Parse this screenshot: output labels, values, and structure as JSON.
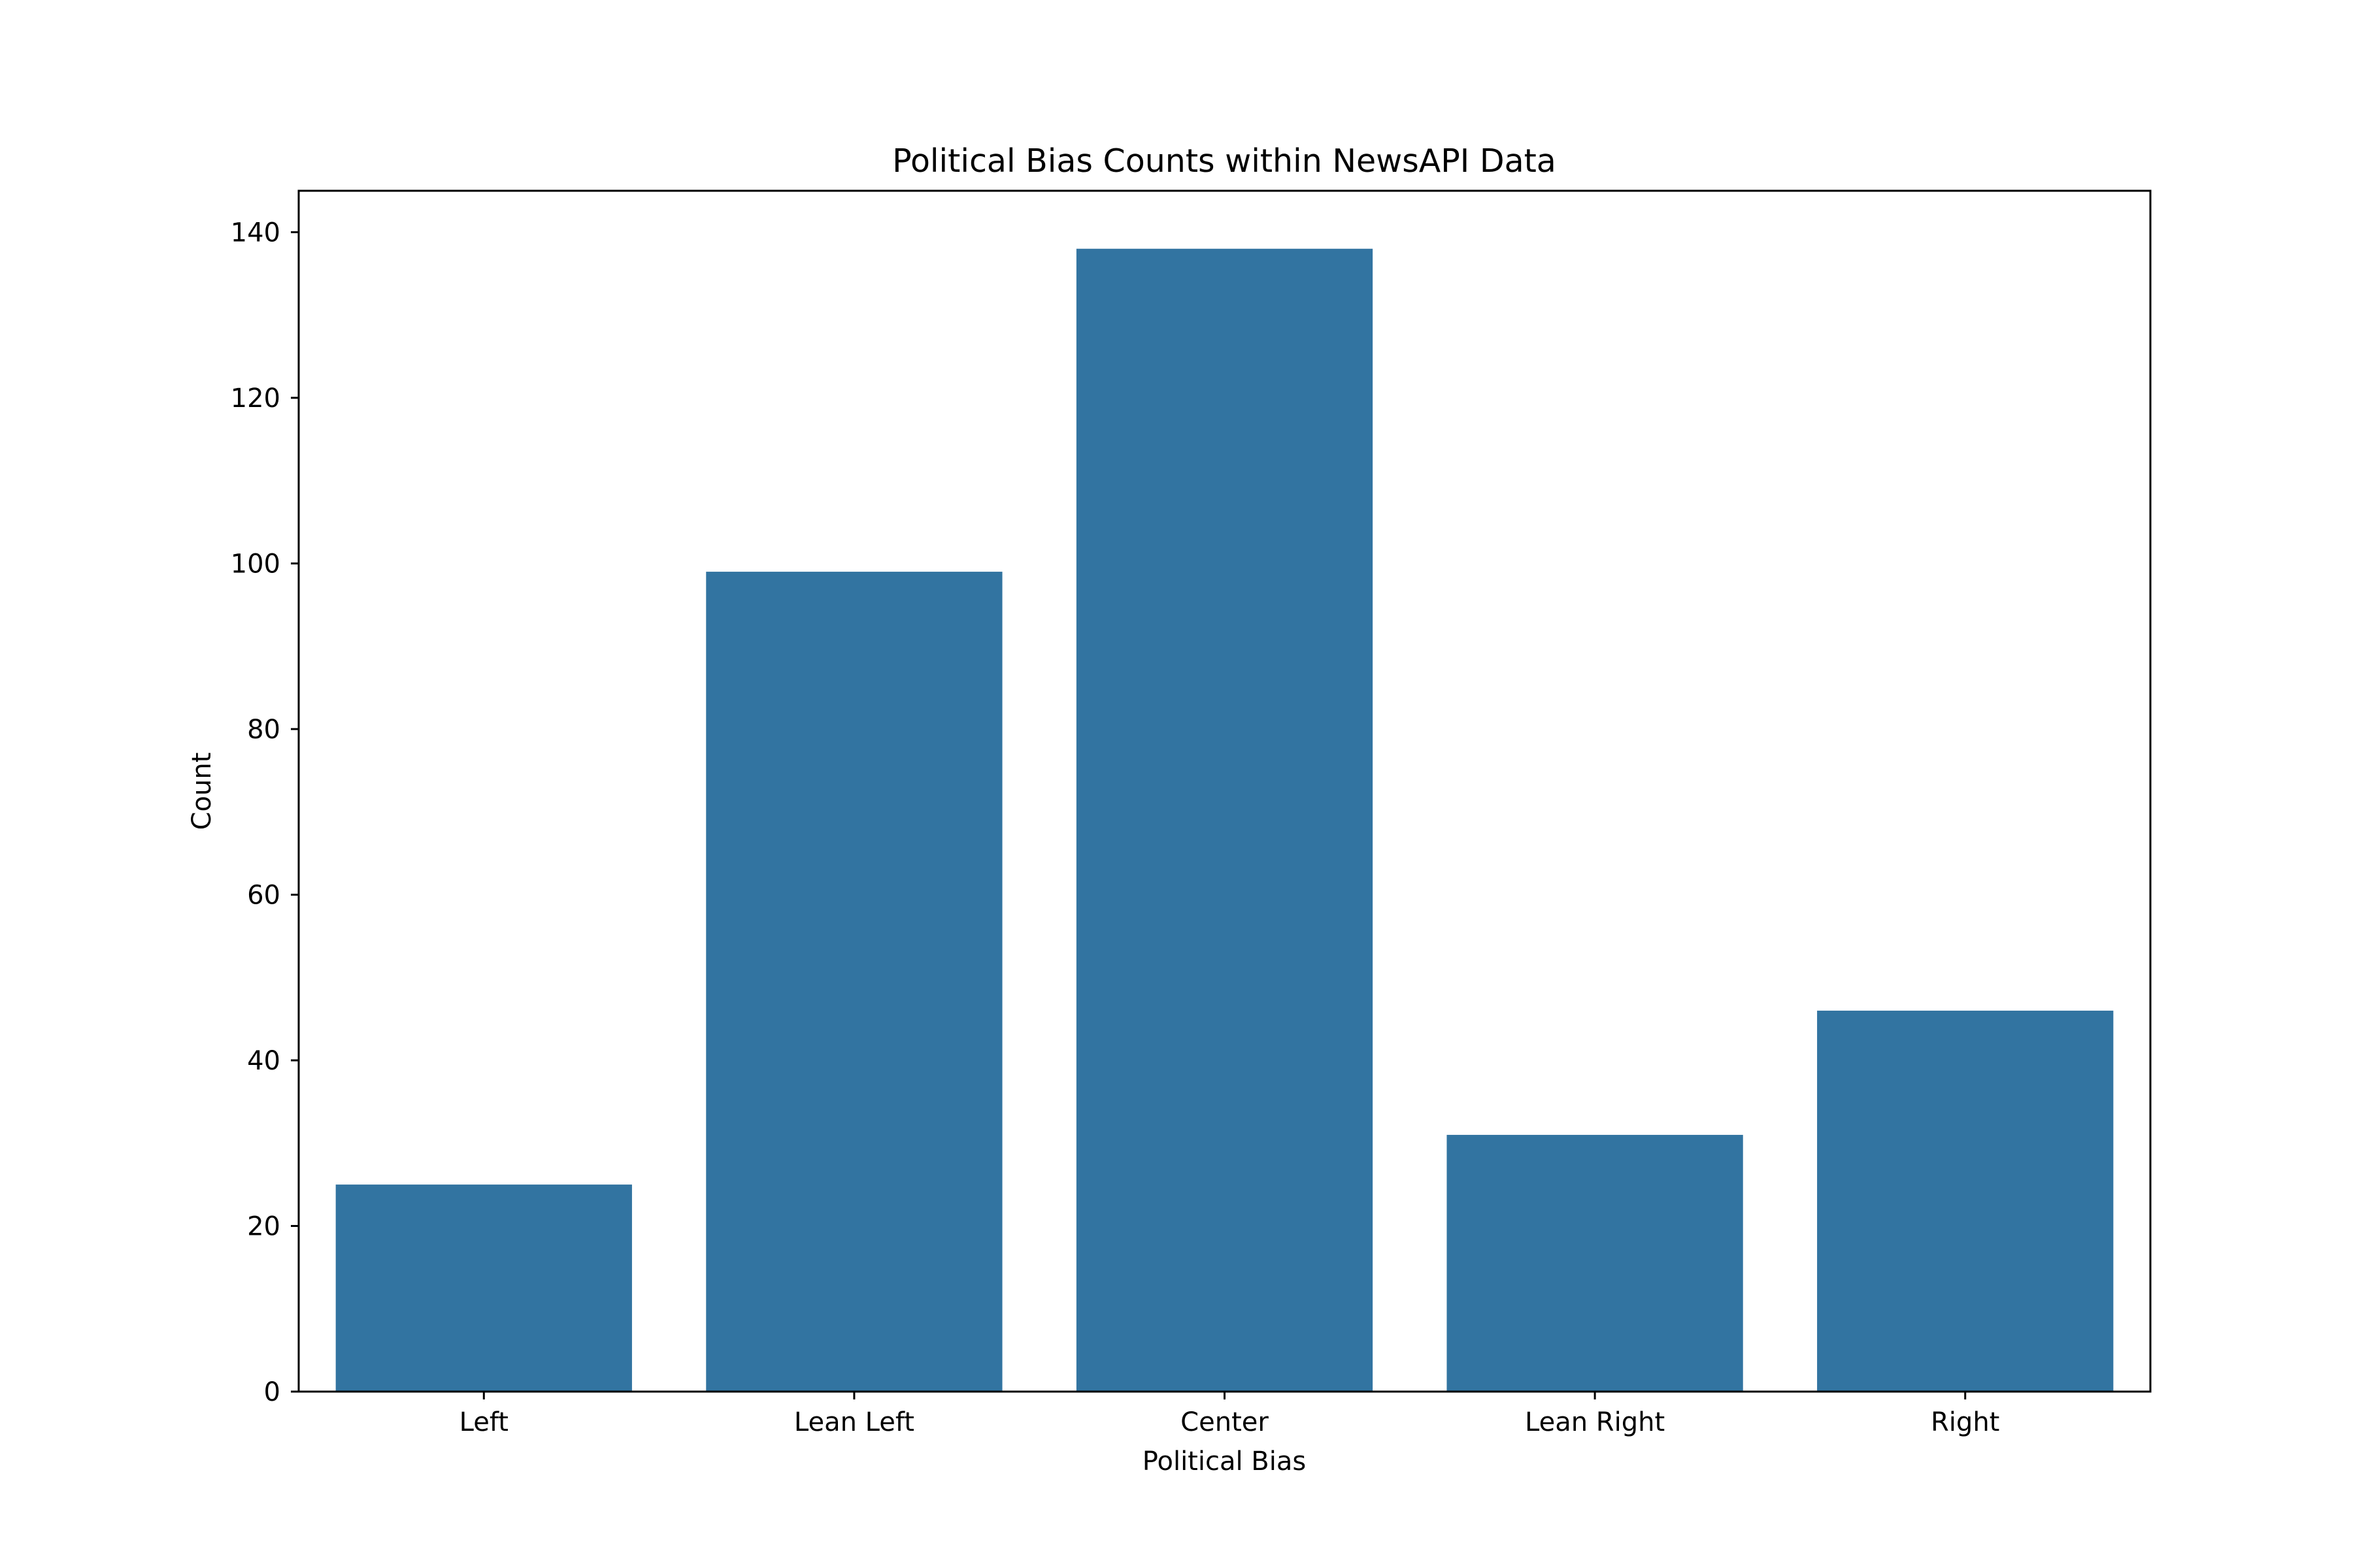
{
  "chart_data": {
    "type": "bar",
    "title": "Political Bias Counts within NewsAPI Data",
    "xlabel": "Political Bias",
    "ylabel": "Count",
    "categories": [
      "Left",
      "Lean Left",
      "Center",
      "Lean Right",
      "Right"
    ],
    "values": [
      25,
      99,
      138,
      31,
      46
    ],
    "ylim": [
      0,
      145
    ],
    "yticks": [
      0,
      20,
      40,
      60,
      80,
      100,
      120,
      140
    ],
    "grid": false,
    "bar_color": "#3274a1"
  }
}
